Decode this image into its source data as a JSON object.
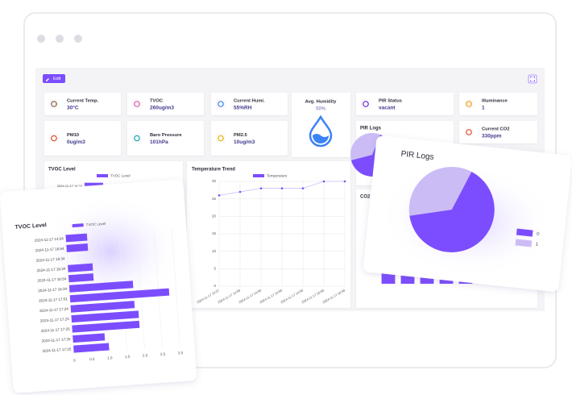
{
  "dashboard": {
    "edit_button": "Edit",
    "cards": [
      {
        "label": "Current Temp.",
        "value": "30°C"
      },
      {
        "label": "TVOC",
        "value": "260ug/m3"
      },
      {
        "label": "Current Humi.",
        "value": "55%RH"
      },
      {
        "label": "PIR Status",
        "value": "vacant"
      },
      {
        "label": "Illuminance",
        "value": "1"
      },
      {
        "label": "PM10",
        "value": "0ug/m3"
      },
      {
        "label": "Baro Pressure",
        "value": "101hPa"
      },
      {
        "label": "PM2.5",
        "value": "10ug/m3"
      },
      {
        "label": "Current CO2",
        "value": "330ppm"
      }
    ],
    "avg_humidity": {
      "label": "Avg. Humidity",
      "value": "50%"
    },
    "tvoc_chart": {
      "type": "bar",
      "title": "TVOC Level",
      "legend": "TVOC Level",
      "color": "#7c4dff",
      "categories": [
        "2024-11-17 14:34",
        "2024-11-17 16:54",
        "2024-11-17 16:34",
        "2024-11-17 16:34",
        "2024-11-17 16:54",
        "2024-11-17 16:34",
        "2024-11-17 17:01",
        "2024-11-17 17:24",
        "2024-11-17 17:24",
        "2024-11-17 17:25",
        "2024-11-17 17:25",
        "2024-11-17 17:25"
      ],
      "values": [
        0.6,
        0.6,
        0,
        0.7,
        0.7,
        1.8,
        2.8,
        1.8,
        1.9,
        1.9,
        0.9,
        1.0
      ],
      "xlim": [
        0,
        3
      ],
      "xticks": [
        0,
        0.5,
        {
          "value": 1,
          "label": "1.0"
        },
        1.5,
        {
          "value": 2,
          "label": "2.0"
        },
        2.5,
        {
          "value": 3,
          "label": "3.0"
        }
      ]
    },
    "temperature_chart": {
      "type": "line",
      "title": "Temperature Trend",
      "series_name": "Temperature",
      "color": "#7c4dff",
      "categories": [
        "2024-11-17 14:37",
        "2024-11-17 14:58",
        "2024-11-17 14:58",
        "2024-11-17 14:58",
        "2024-11-17 14:58",
        "2024-11-17 16:58",
        "2024-11-17 16:58"
      ],
      "values": [
        26,
        27,
        28,
        28,
        28,
        30,
        30
      ],
      "ylim": [
        0,
        30
      ],
      "yticks": [
        0,
        5,
        10,
        15,
        20,
        25,
        30
      ],
      "grid": true
    },
    "pir_chart": {
      "type": "pie",
      "title": "PIR Logs",
      "categories": [
        "0",
        "1"
      ],
      "values": [
        65,
        35
      ],
      "colors": [
        "#7c4dff",
        "#cbbcf6"
      ]
    },
    "co2_chart": {
      "type": "bar",
      "title": "CO2 Logs",
      "color": "#7c4dff",
      "values": [
        330,
        330,
        330,
        330,
        330,
        330,
        330,
        330
      ],
      "ylim": [
        0,
        400
      ]
    }
  }
}
